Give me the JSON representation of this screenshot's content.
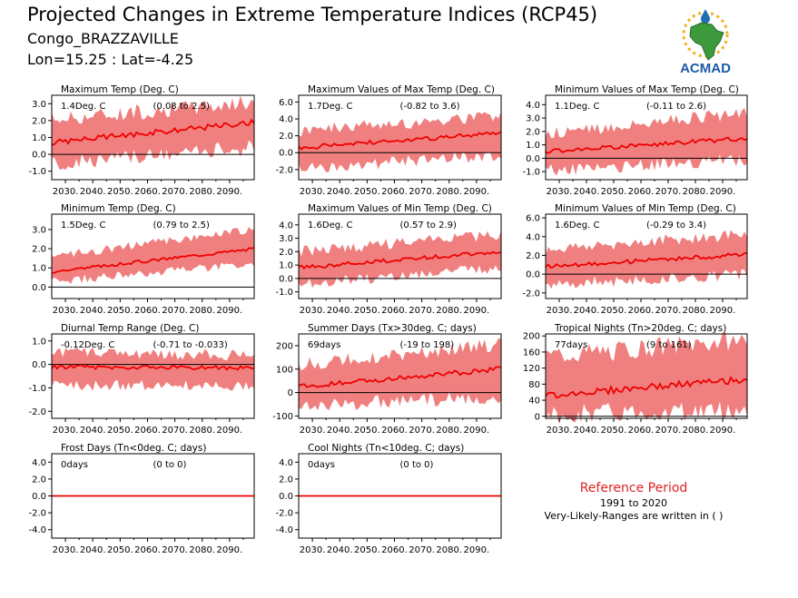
{
  "title": "Projected Changes in Extreme Temperature Indices (RCP45)",
  "subtitle_location": "Congo_BRAZZAVILLE",
  "subtitle_coords": "Lon=15.25 : Lat=-4.25",
  "logo_text": "ACMAD",
  "reference": {
    "title": "Reference Period",
    "years": "1991 to 2020",
    "note": "Very-Likely-Ranges are written in ( )"
  },
  "colors": {
    "mean_line": "#ee0000",
    "range_fill": "#f08080",
    "zero_line": "#000000",
    "reference_title": "#e02020"
  },
  "chart_data": [
    {
      "type": "area",
      "title": "Maximum Temp (Deg. C)",
      "annotation_value": "1.4Deg. C",
      "annotation_range": "(0.08 to 2.5)",
      "x_range": [
        2025,
        2099
      ],
      "x_ticks": [
        "2030.",
        "2040.",
        "2050.",
        "2060.",
        "2070.",
        "2080.",
        "2090."
      ],
      "ylim": [
        -1.5,
        3.5
      ],
      "y_ticks": [
        "-1.0",
        "0.0",
        "1.0",
        "2.0",
        "3.0"
      ],
      "series": [
        {
          "values": {
            "start": 0.7,
            "end": 1.9
          }
        },
        {
          "values": {
            "start_low": -0.6,
            "end_low": 0.4,
            "start_high": 2.1,
            "end_high": 3.1
          }
        }
      ]
    },
    {
      "type": "area",
      "title": "Maximum Values of Max Temp (Deg. C)",
      "annotation_value": "1.7Deg. C",
      "annotation_range": "(-0.82 to 3.6)",
      "x_range": [
        2025,
        2099
      ],
      "x_ticks": [
        "2030.",
        "2040.",
        "2050.",
        "2060.",
        "2070.",
        "2080.",
        "2090."
      ],
      "ylim": [
        -3.2,
        6.8
      ],
      "y_ticks": [
        "-2.0",
        "0.0",
        "2.0",
        "4.0",
        "6.0"
      ],
      "series": [
        {
          "values": {
            "start": 0.6,
            "end": 2.3
          }
        },
        {
          "values": {
            "start_low": -1.8,
            "end_low": -0.3,
            "start_high": 2.6,
            "end_high": 4.4
          }
        }
      ]
    },
    {
      "type": "area",
      "title": "Minimum Values of Max Temp (Deg. C)",
      "annotation_value": "1.1Deg. C",
      "annotation_range": "(-0.11 to 2.6)",
      "x_range": [
        2025,
        2099
      ],
      "x_ticks": [
        "2030.",
        "2040.",
        "2050.",
        "2060.",
        "2070.",
        "2080.",
        "2090."
      ],
      "ylim": [
        -1.6,
        4.7
      ],
      "y_ticks": [
        "-1.0",
        "0.0",
        "1.0",
        "2.0",
        "3.0",
        "4.0"
      ],
      "series": [
        {
          "values": {
            "start": 0.5,
            "end": 1.5
          }
        },
        {
          "values": {
            "start_low": -0.9,
            "end_low": -0.1,
            "start_high": 1.8,
            "end_high": 3.4
          }
        }
      ]
    },
    {
      "type": "area",
      "title": "Minimum Temp (Deg. C)",
      "annotation_value": "1.5Deg. C",
      "annotation_range": "(0.79 to 2.5)",
      "x_range": [
        2025,
        2099
      ],
      "x_ticks": [
        "2030.",
        "2040.",
        "2050.",
        "2060.",
        "2070.",
        "2080.",
        "2090."
      ],
      "ylim": [
        -0.6,
        3.8
      ],
      "y_ticks": [
        "0.0",
        "1.0",
        "2.0",
        "3.0"
      ],
      "series": [
        {
          "values": {
            "start": 0.8,
            "end": 2.0
          }
        },
        {
          "values": {
            "start_low": 0.3,
            "end_low": 1.2,
            "start_high": 1.6,
            "end_high": 3.0
          }
        }
      ]
    },
    {
      "type": "area",
      "title": "Maximum Values of Min Temp (Deg. C)",
      "annotation_value": "1.6Deg. C",
      "annotation_range": "(0.57 to 2.9)",
      "x_range": [
        2025,
        2099
      ],
      "x_ticks": [
        "2030.",
        "2040.",
        "2050.",
        "2060.",
        "2070.",
        "2080.",
        "2090."
      ],
      "ylim": [
        -1.5,
        4.8
      ],
      "y_ticks": [
        "-1.0",
        "0.0",
        "1.0",
        "2.0",
        "3.0",
        "4.0"
      ],
      "series": [
        {
          "values": {
            "start": 0.8,
            "end": 2.0
          }
        },
        {
          "values": {
            "start_low": -0.4,
            "end_low": 0.8,
            "start_high": 2.0,
            "end_high": 3.3
          }
        }
      ]
    },
    {
      "type": "area",
      "title": "Minimum Values of Min Temp (Deg. C)",
      "annotation_value": "1.6Deg. C",
      "annotation_range": "(-0.29 to 3.4)",
      "x_range": [
        2025,
        2099
      ],
      "x_ticks": [
        "2030.",
        "2040.",
        "2050.",
        "2060.",
        "2070.",
        "2080.",
        "2090."
      ],
      "ylim": [
        -2.6,
        6.4
      ],
      "y_ticks": [
        "-2.0",
        "0.0",
        "2.0",
        "4.0",
        "6.0"
      ],
      "series": [
        {
          "values": {
            "start": 0.8,
            "end": 2.1
          }
        },
        {
          "values": {
            "start_low": -1.1,
            "end_low": 0.0,
            "start_high": 2.6,
            "end_high": 4.3
          }
        }
      ]
    },
    {
      "type": "area",
      "title": "Diurnal Temp Range (Deg. C)",
      "annotation_value": "-0.12Deg. C",
      "annotation_range": "(-0.71 to -0.033)",
      "x_range": [
        2025,
        2099
      ],
      "x_ticks": [
        "2030.",
        "2040.",
        "2050.",
        "2060.",
        "2070.",
        "2080.",
        "2090."
      ],
      "ylim": [
        -2.3,
        1.3
      ],
      "y_ticks": [
        "-2.0",
        "-1.0",
        "0.0",
        "1.0"
      ],
      "series": [
        {
          "values": {
            "start": -0.1,
            "end": -0.15
          }
        },
        {
          "values": {
            "start_low": -0.9,
            "end_low": -0.9,
            "start_high": 0.5,
            "end_high": 0.4
          }
        }
      ]
    },
    {
      "type": "area",
      "title": "Summer Days (Tx>30deg. C; days)",
      "annotation_value": "69days",
      "annotation_range": "(-19 to 198)",
      "x_range": [
        2025,
        2099
      ],
      "x_ticks": [
        "2030.",
        "2040.",
        "2050.",
        "2060.",
        "2070.",
        "2080.",
        "2090."
      ],
      "ylim": [
        -110,
        250
      ],
      "y_ticks": [
        "-100",
        "0",
        "100",
        "200"
      ],
      "series": [
        {
          "values": {
            "start": 25,
            "end": 100
          }
        },
        {
          "values": {
            "start_low": -55,
            "end_low": -20,
            "start_high": 120,
            "end_high": 205
          }
        }
      ]
    },
    {
      "type": "area",
      "title": "Tropical Nights (Tn>20deg. C; days)",
      "annotation_value": "77days",
      "annotation_range": "(9 to 161)",
      "x_range": [
        2025,
        2099
      ],
      "x_ticks": [
        "2030.",
        "2040.",
        "2050.",
        "2060.",
        "2070.",
        "2080.",
        "2090."
      ],
      "ylim": [
        -5,
        205
      ],
      "y_ticks": [
        "0",
        "40",
        "80",
        "120",
        "160",
        "200"
      ],
      "series": [
        {
          "values": {
            "start": 52,
            "end": 92
          }
        },
        {
          "values": {
            "start_low": 5,
            "end_low": 15,
            "start_high": 150,
            "end_high": 190
          }
        }
      ]
    },
    {
      "type": "area",
      "title": "Frost Days (Tn<0deg. C; days)",
      "annotation_value": "0days",
      "annotation_range": "(0 to 0)",
      "x_range": [
        2025,
        2099
      ],
      "x_ticks": [
        "2030.",
        "2040.",
        "2050.",
        "2060.",
        "2070.",
        "2080.",
        "2090."
      ],
      "ylim": [
        -5,
        5
      ],
      "y_ticks": [
        "-4.0",
        "-2.0",
        "0.0",
        "2.0",
        "4.0"
      ],
      "series": [
        {
          "values": {
            "start": 0,
            "end": 0
          }
        },
        {
          "values": {
            "start_low": 0,
            "end_low": 0,
            "start_high": 0,
            "end_high": 0
          }
        }
      ]
    },
    {
      "type": "area",
      "title": "Cool Nights (Tn<10deg. C; days)",
      "annotation_value": "0days",
      "annotation_range": "(0 to 0)",
      "x_range": [
        2025,
        2099
      ],
      "x_ticks": [
        "2030.",
        "2040.",
        "2050.",
        "2060.",
        "2070.",
        "2080.",
        "2090."
      ],
      "ylim": [
        -5,
        5
      ],
      "y_ticks": [
        "-4.0",
        "-2.0",
        "0.0",
        "2.0",
        "4.0"
      ],
      "series": [
        {
          "values": {
            "start": 0,
            "end": 0
          }
        },
        {
          "values": {
            "start_low": 0,
            "end_low": 0,
            "start_high": 0,
            "end_high": 0
          }
        }
      ]
    }
  ]
}
